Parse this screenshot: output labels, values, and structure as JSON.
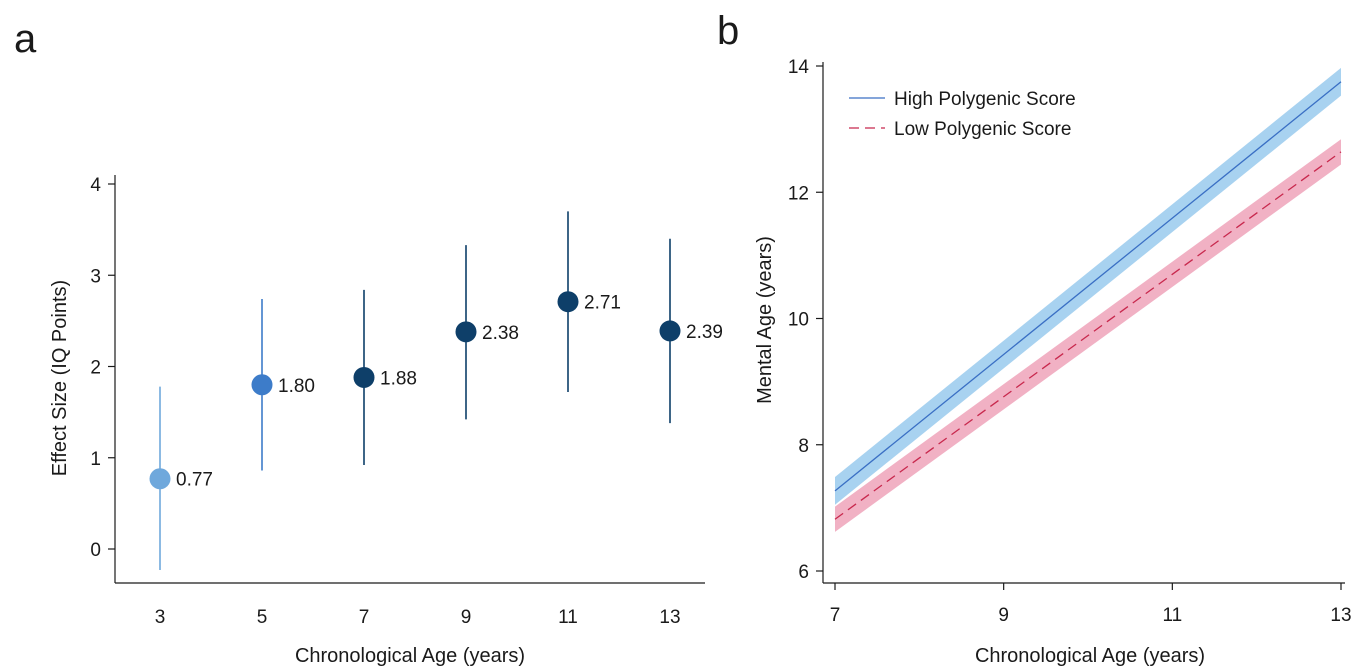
{
  "colors": {
    "axis": "#1a1a1a",
    "panel_a_light": "#6fa8dc",
    "panel_a_mid": "#3d7cc9",
    "panel_a_dark": "#0e3f69",
    "high_line": "#3a6fc4",
    "high_band": "#9fcdee",
    "low_line": "#c8284d",
    "low_band": "#f0a9be"
  },
  "chart_data": [
    {
      "panel": "a",
      "type": "scatter",
      "xlabel": "Chronological Age (years)",
      "ylabel": "Effect Size (IQ Points)",
      "xlim": [
        2,
        14
      ],
      "ylim": [
        -0.3,
        4.1
      ],
      "xticks": [
        3,
        5,
        7,
        9,
        11,
        13
      ],
      "yticks": [
        0,
        1,
        2,
        3,
        4
      ],
      "points": [
        {
          "x": 3,
          "y": 0.77,
          "lower": -0.23,
          "upper": 1.78,
          "label": "0.77",
          "shade": "light"
        },
        {
          "x": 5,
          "y": 1.8,
          "lower": 0.86,
          "upper": 2.74,
          "label": "1.80",
          "shade": "mid"
        },
        {
          "x": 7,
          "y": 1.88,
          "lower": 0.92,
          "upper": 2.84,
          "label": "1.88",
          "shade": "dark"
        },
        {
          "x": 9,
          "y": 2.38,
          "lower": 1.42,
          "upper": 3.33,
          "label": "2.38",
          "shade": "dark"
        },
        {
          "x": 11,
          "y": 2.71,
          "lower": 1.72,
          "upper": 3.7,
          "label": "2.71",
          "shade": "dark"
        },
        {
          "x": 13,
          "y": 2.39,
          "lower": 1.38,
          "upper": 3.4,
          "label": "2.39",
          "shade": "dark"
        }
      ]
    },
    {
      "panel": "b",
      "type": "line",
      "xlabel": "Chronological Age (years)",
      "ylabel": "Mental Age (years)",
      "xlim": [
        7,
        13
      ],
      "ylim": [
        6,
        14
      ],
      "xticks": [
        7,
        9,
        11,
        13
      ],
      "yticks": [
        6,
        8,
        10,
        12,
        14
      ],
      "legend": "top-left",
      "series": [
        {
          "name": "High Polygenic Score",
          "style": "solid",
          "x": [
            7,
            13
          ],
          "y": [
            7.27,
            13.75
          ],
          "band_halfwidth": 0.22
        },
        {
          "name": "Low Polygenic Score",
          "style": "dashed",
          "x": [
            7,
            13
          ],
          "y": [
            6.82,
            12.64
          ],
          "band_halfwidth": 0.2
        }
      ]
    }
  ]
}
